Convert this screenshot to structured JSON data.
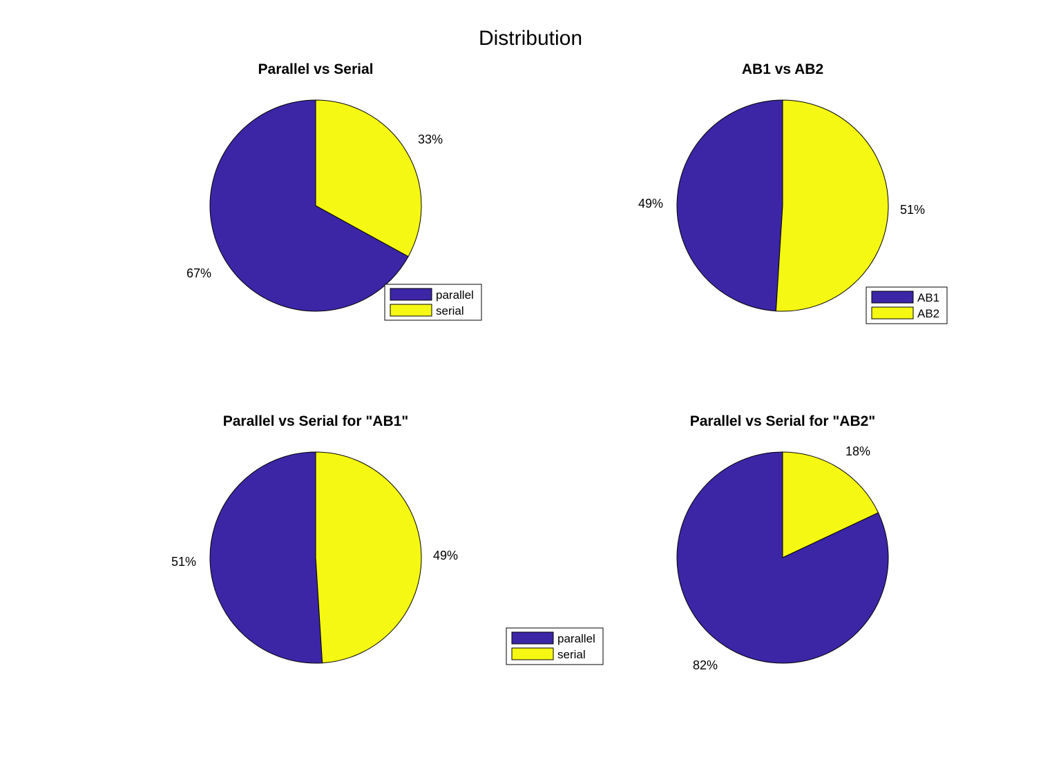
{
  "figure": {
    "title": "Distribution"
  },
  "colors": {
    "parallel": "#3c26a6",
    "serial": "#f5f812",
    "edge": "#000000",
    "background": "#ffffff"
  },
  "chart_data": [
    {
      "type": "pie",
      "title": "Parallel vs Serial",
      "labels": [
        "parallel",
        "serial"
      ],
      "values": [
        67,
        33
      ],
      "value_labels": [
        "67%",
        "33%"
      ],
      "legend": {
        "entries": [
          "parallel",
          "serial"
        ],
        "placement": "bottom-right"
      }
    },
    {
      "type": "pie",
      "title": "AB1 vs AB2",
      "labels": [
        "AB1",
        "AB2"
      ],
      "values": [
        49,
        51
      ],
      "value_labels": [
        "49%",
        "51%"
      ],
      "legend": {
        "entries": [
          "AB1",
          "AB2"
        ],
        "placement": "bottom-right"
      }
    },
    {
      "type": "pie",
      "title": "Parallel vs Serial for \"AB1\"",
      "labels": [
        "parallel",
        "serial"
      ],
      "values": [
        51,
        49
      ],
      "value_labels": [
        "51%",
        "49%"
      ],
      "legend": {
        "entries": [
          "parallel",
          "serial"
        ],
        "placement": "bottom-right"
      }
    },
    {
      "type": "pie",
      "title": "Parallel vs Serial for \"AB2\"",
      "labels": [
        "parallel",
        "serial"
      ],
      "values": [
        82,
        18
      ],
      "value_labels": [
        "82%",
        "18%"
      ],
      "legend": null
    }
  ]
}
